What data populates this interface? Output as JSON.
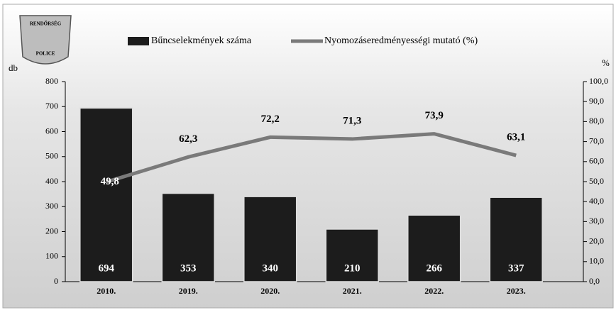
{
  "chart_data": {
    "type": "bar_line",
    "logo": {
      "top": "RENDŐRSÉG",
      "bottom": "POLICE"
    },
    "y_label": "db",
    "y2_label": "%",
    "categories": [
      "2010.",
      "2019.",
      "2020.",
      "2021.",
      "2022.",
      "2023."
    ],
    "series": [
      {
        "name": "Bűncselekmények száma",
        "type": "bar",
        "color": "#1c1c1c",
        "values": [
          694,
          353,
          340,
          210,
          266,
          337
        ]
      },
      {
        "name": "Nyomozáseredményességi mutató (%)",
        "type": "line",
        "axis": "y2",
        "color": "#7a7a7a",
        "values": [
          49.8,
          62.3,
          72.2,
          71.3,
          73.9,
          63.1
        ],
        "value_labels": [
          "49,8",
          "62,3",
          "72,2",
          "71,3",
          "73,9",
          "63,1"
        ]
      }
    ],
    "ylim": [
      0,
      800
    ],
    "yticks": [
      0,
      100,
      200,
      300,
      400,
      500,
      600,
      700,
      800
    ],
    "y2lim": [
      0,
      100
    ],
    "y2ticks": [
      {
        "value": 0,
        "label": "0,0"
      },
      {
        "value": 10,
        "label": "10,0"
      },
      {
        "value": 20,
        "label": "20,0"
      },
      {
        "value": 30,
        "label": "30,0"
      },
      {
        "value": 40,
        "label": "40,0"
      },
      {
        "value": 50,
        "label": "50,0"
      },
      {
        "value": 60,
        "label": "60,0"
      },
      {
        "value": 70,
        "label": "70,0"
      },
      {
        "value": 80,
        "label": "80,0"
      },
      {
        "value": 90,
        "label": "90,0"
      },
      {
        "value": 100,
        "label": "100,0"
      }
    ],
    "legend": "top"
  }
}
